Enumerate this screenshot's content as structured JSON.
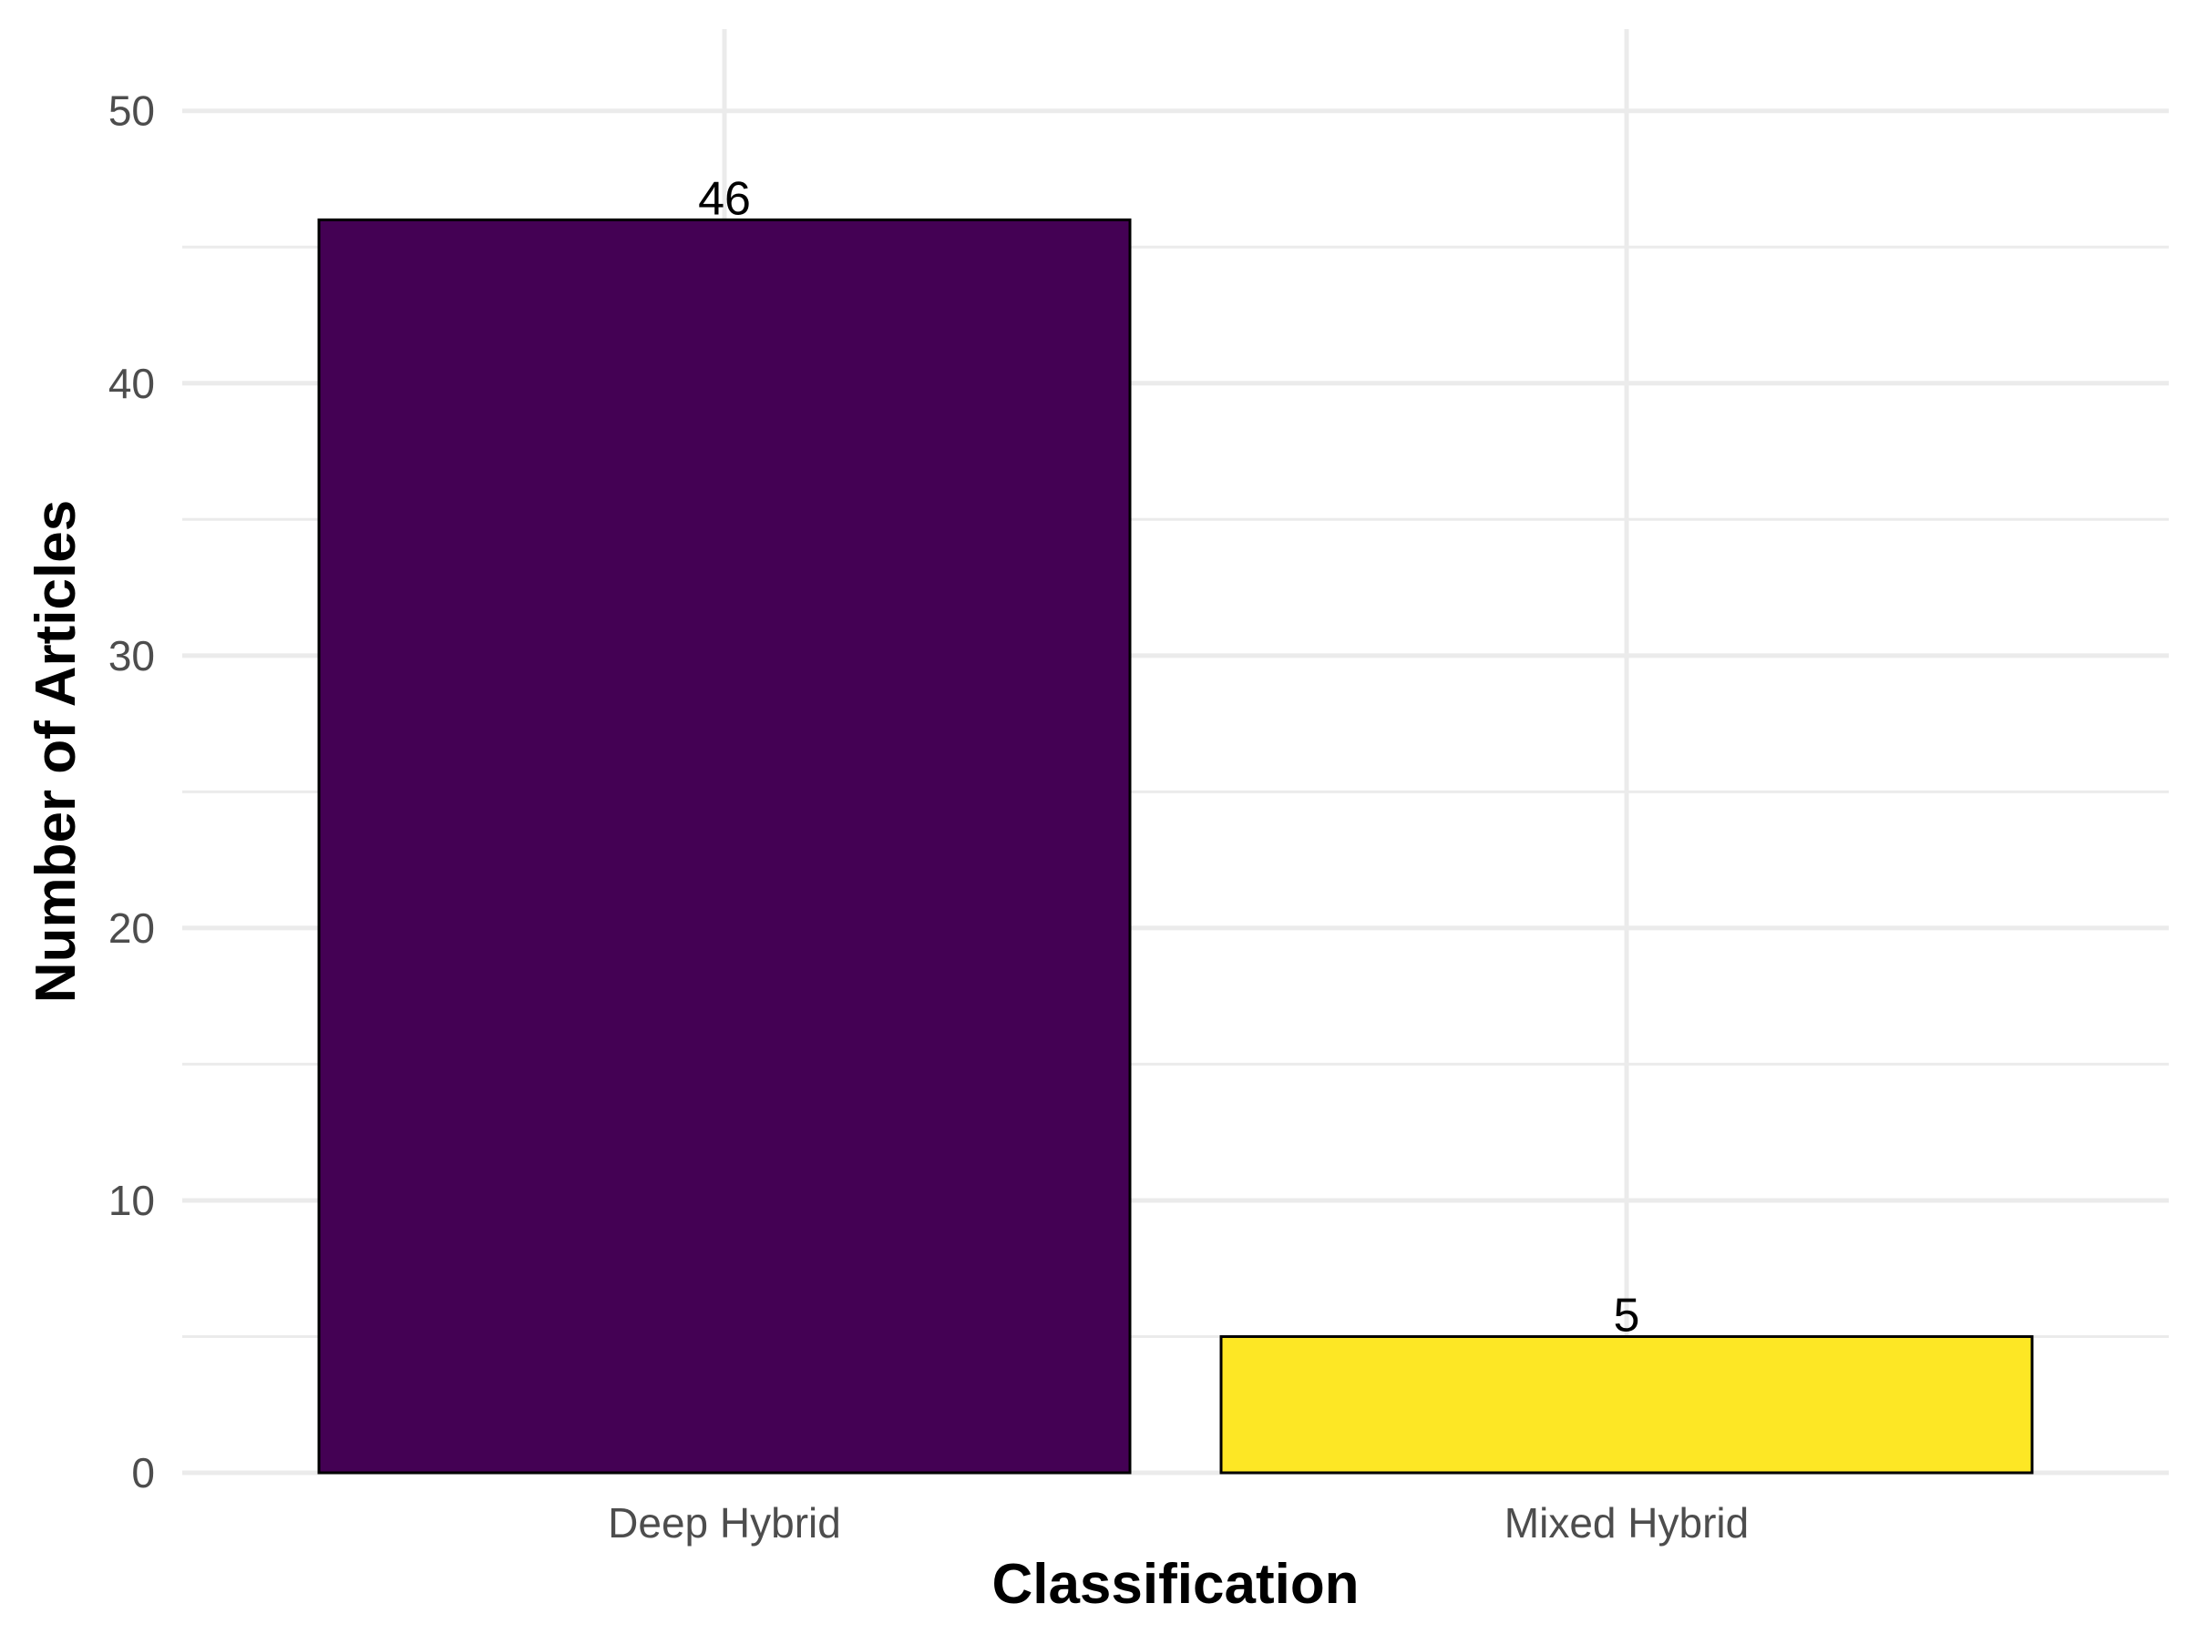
{
  "chart_data": {
    "type": "bar",
    "title": "",
    "xlabel": "Classification",
    "ylabel": "Number of Articles",
    "categories": [
      "Deep Hybrid",
      "Mixed Hybrid"
    ],
    "values": [
      46,
      5
    ],
    "data_labels": [
      "46",
      "5"
    ],
    "bar_colors": [
      "#440154",
      "#FDE725"
    ],
    "bar_outline_color": "#000000",
    "ylim": [
      0,
      53
    ],
    "yticks": [
      0,
      10,
      20,
      30,
      40,
      50
    ],
    "ytick_labels": [
      "0",
      "10",
      "20",
      "30",
      "40",
      "50"
    ],
    "grid": true,
    "legend": "none"
  }
}
